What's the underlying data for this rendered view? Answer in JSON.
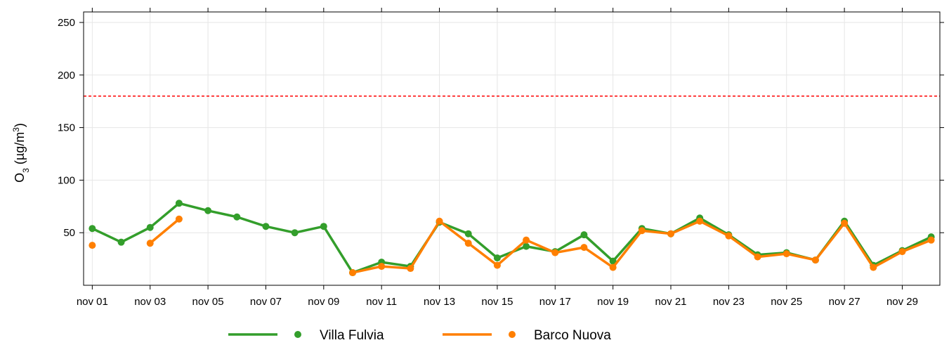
{
  "chart_data": {
    "type": "line",
    "title": "",
    "xlabel": "",
    "ylabel": {
      "base": "O",
      "sub": "3",
      "unit": "(µg/m",
      "sup": "3",
      "close": ")"
    },
    "ylim": [
      0,
      260
    ],
    "yticks": [
      50,
      100,
      150,
      200,
      250
    ],
    "xticks": [
      "nov 01",
      "nov 03",
      "nov 05",
      "nov 07",
      "nov 09",
      "nov 11",
      "nov 13",
      "nov 15",
      "nov 17",
      "nov 19",
      "nov 21",
      "nov 23",
      "nov 25",
      "nov 27",
      "nov 29"
    ],
    "x_days": [
      1,
      2,
      3,
      4,
      5,
      6,
      7,
      8,
      9,
      10,
      11,
      12,
      13,
      14,
      15,
      16,
      17,
      18,
      19,
      20,
      21,
      22,
      23,
      24,
      25,
      26,
      27,
      28,
      29,
      30
    ],
    "threshold": {
      "value": 180,
      "color": "#ff0000",
      "style": "dashed"
    },
    "grid": true,
    "legend_position": "bottom",
    "series": [
      {
        "name": "Villa Fulvia",
        "color": "#339e2b",
        "values": [
          54,
          41,
          55,
          78,
          71,
          65,
          56,
          50,
          56,
          12,
          22,
          18,
          60,
          49,
          26,
          37,
          32,
          48,
          23,
          54,
          49,
          64,
          48,
          29,
          31,
          24,
          61,
          19,
          33,
          46
        ]
      },
      {
        "name": "Barco Nuova",
        "color": "#ff7f00",
        "values": [
          38,
          null,
          40,
          63,
          null,
          null,
          null,
          null,
          null,
          12,
          18,
          16,
          61,
          40,
          19,
          43,
          31,
          36,
          17,
          52,
          49,
          61,
          47,
          27,
          30,
          24,
          59,
          17,
          32,
          43
        ]
      }
    ]
  }
}
